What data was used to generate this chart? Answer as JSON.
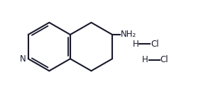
{
  "background_color": "#ffffff",
  "line_color": "#1a1a2e",
  "line_width": 1.5,
  "figsize": [
    3.14,
    1.5
  ],
  "dpi": 100,
  "NH2_label": "NH₂",
  "Cl_label": "Cl",
  "H_label": "H",
  "N_label": "N",
  "font_size_main": 8.5,
  "xlim": [
    0,
    10
  ],
  "ylim": [
    0,
    5
  ]
}
